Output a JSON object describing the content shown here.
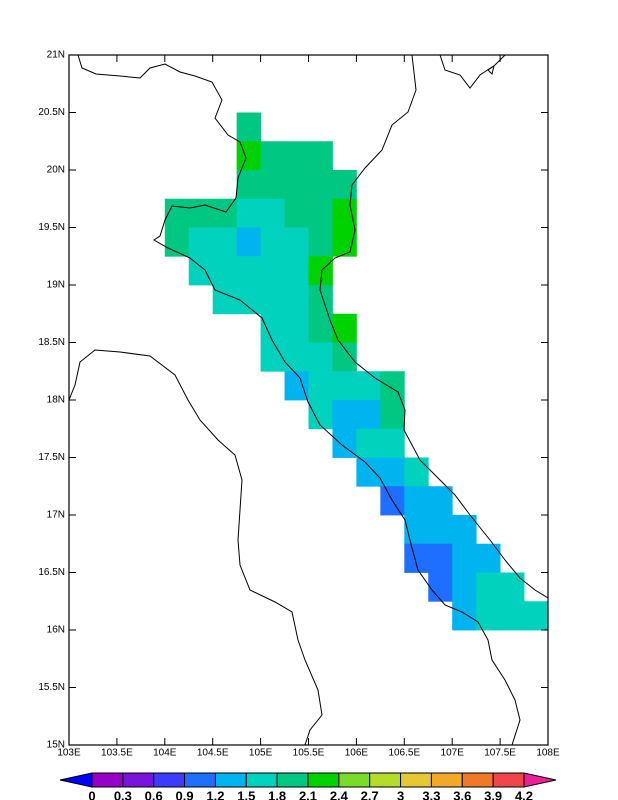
{
  "map": {
    "xlim": [
      103,
      108
    ],
    "ylim": [
      15,
      21
    ],
    "xticks": [
      {
        "value": 103,
        "label": "103E"
      },
      {
        "value": 103.5,
        "label": "103.5E"
      },
      {
        "value": 104,
        "label": "104E"
      },
      {
        "value": 104.5,
        "label": "104.5E"
      },
      {
        "value": 105,
        "label": "105E"
      },
      {
        "value": 105.5,
        "label": "105.5E"
      },
      {
        "value": 106,
        "label": "106E"
      },
      {
        "value": 106.5,
        "label": "106.5E"
      },
      {
        "value": 107,
        "label": "107E"
      },
      {
        "value": 107.5,
        "label": "107.5E"
      },
      {
        "value": 108,
        "label": "108E"
      }
    ],
    "yticks": [
      {
        "value": 15,
        "label": "15N"
      },
      {
        "value": 15.5,
        "label": "15.5N"
      },
      {
        "value": 16,
        "label": "16N"
      },
      {
        "value": 16.5,
        "label": "16.5N"
      },
      {
        "value": 17,
        "label": "17N"
      },
      {
        "value": 17.5,
        "label": "17.5N"
      },
      {
        "value": 18,
        "label": "18N"
      },
      {
        "value": 18.5,
        "label": "18.5N"
      },
      {
        "value": 19,
        "label": "19N"
      },
      {
        "value": 19.5,
        "label": "19.5N"
      },
      {
        "value": 20,
        "label": "20N"
      },
      {
        "value": 20.5,
        "label": "20.5N"
      },
      {
        "value": 21,
        "label": "21N"
      }
    ],
    "grid": {
      "lons": [
        104.125,
        104.375,
        104.625,
        104.875,
        105.125,
        105.375,
        105.625,
        105.875,
        106.125,
        106.375,
        106.625,
        106.875,
        107.125,
        107.375,
        107.625,
        107.875
      ],
      "lats": [
        20.375,
        20.125,
        19.875,
        19.625,
        19.375,
        19.125,
        18.875,
        18.625,
        18.375,
        18.125,
        17.875,
        17.625,
        17.375,
        17.125,
        16.875,
        16.625,
        16.375,
        16.125
      ],
      "values": [
        [
          null,
          null,
          null,
          1.95,
          null,
          null,
          null,
          null,
          null,
          null,
          null,
          null,
          null,
          null,
          null,
          null
        ],
        [
          null,
          null,
          null,
          2.25,
          1.95,
          1.95,
          1.95,
          null,
          null,
          null,
          null,
          null,
          null,
          null,
          null,
          null
        ],
        [
          null,
          null,
          null,
          1.95,
          1.95,
          1.95,
          1.95,
          1.95,
          null,
          null,
          null,
          null,
          null,
          null,
          null,
          null
        ],
        [
          1.95,
          1.95,
          1.95,
          1.65,
          1.65,
          1.95,
          1.95,
          2.25,
          null,
          null,
          null,
          null,
          null,
          null,
          null,
          null
        ],
        [
          1.95,
          1.65,
          1.65,
          1.35,
          1.65,
          1.65,
          1.95,
          2.25,
          null,
          null,
          null,
          null,
          null,
          null,
          null,
          null
        ],
        [
          null,
          1.65,
          1.65,
          1.65,
          1.65,
          1.65,
          2.25,
          null,
          null,
          null,
          null,
          null,
          null,
          null,
          null,
          null
        ],
        [
          null,
          null,
          1.65,
          1.65,
          1.65,
          1.65,
          1.95,
          null,
          null,
          null,
          null,
          null,
          null,
          null,
          null,
          null
        ],
        [
          null,
          null,
          null,
          null,
          1.65,
          1.65,
          1.95,
          2.25,
          null,
          null,
          null,
          null,
          null,
          null,
          null,
          null
        ],
        [
          null,
          null,
          null,
          null,
          1.65,
          1.65,
          1.65,
          1.95,
          null,
          null,
          null,
          null,
          null,
          null,
          null,
          null
        ],
        [
          null,
          null,
          null,
          null,
          null,
          1.35,
          1.65,
          1.65,
          1.65,
          1.95,
          null,
          null,
          null,
          null,
          null,
          null
        ],
        [
          null,
          null,
          null,
          null,
          null,
          null,
          1.65,
          1.35,
          1.35,
          1.95,
          null,
          null,
          null,
          null,
          null,
          null
        ],
        [
          null,
          null,
          null,
          null,
          null,
          null,
          null,
          1.35,
          1.65,
          1.65,
          null,
          null,
          null,
          null,
          null,
          null
        ],
        [
          null,
          null,
          null,
          null,
          null,
          null,
          null,
          null,
          1.35,
          1.35,
          1.65,
          null,
          null,
          null,
          null,
          null
        ],
        [
          null,
          null,
          null,
          null,
          null,
          null,
          null,
          null,
          null,
          1.05,
          1.35,
          1.35,
          null,
          null,
          null,
          null
        ],
        [
          null,
          null,
          null,
          null,
          null,
          null,
          null,
          null,
          null,
          null,
          1.35,
          1.35,
          1.35,
          null,
          null,
          null
        ],
        [
          null,
          null,
          null,
          null,
          null,
          null,
          null,
          null,
          null,
          null,
          1.05,
          1.05,
          1.35,
          1.35,
          null,
          null
        ],
        [
          null,
          null,
          null,
          null,
          null,
          null,
          null,
          null,
          null,
          null,
          null,
          1.05,
          1.35,
          1.65,
          1.65,
          null
        ],
        [
          null,
          null,
          null,
          null,
          null,
          null,
          null,
          null,
          null,
          null,
          null,
          null,
          1.35,
          1.65,
          1.65,
          1.65
        ]
      ]
    },
    "colorbar": {
      "levels": [
        0,
        0.3,
        0.6,
        0.9,
        1.2,
        1.5,
        1.8,
        2.1,
        2.4,
        2.7,
        3,
        3.3,
        3.6,
        3.9,
        4.2
      ],
      "colors": [
        "#0000ff",
        "#9600c8",
        "#7814dc",
        "#3c3cff",
        "#1e6eff",
        "#00b4f0",
        "#00d2be",
        "#00c882",
        "#00d200",
        "#78dc28",
        "#b4dc28",
        "#e6c832",
        "#f0aa28",
        "#f07828",
        "#f0464b",
        "#f01e96"
      ]
    }
  }
}
